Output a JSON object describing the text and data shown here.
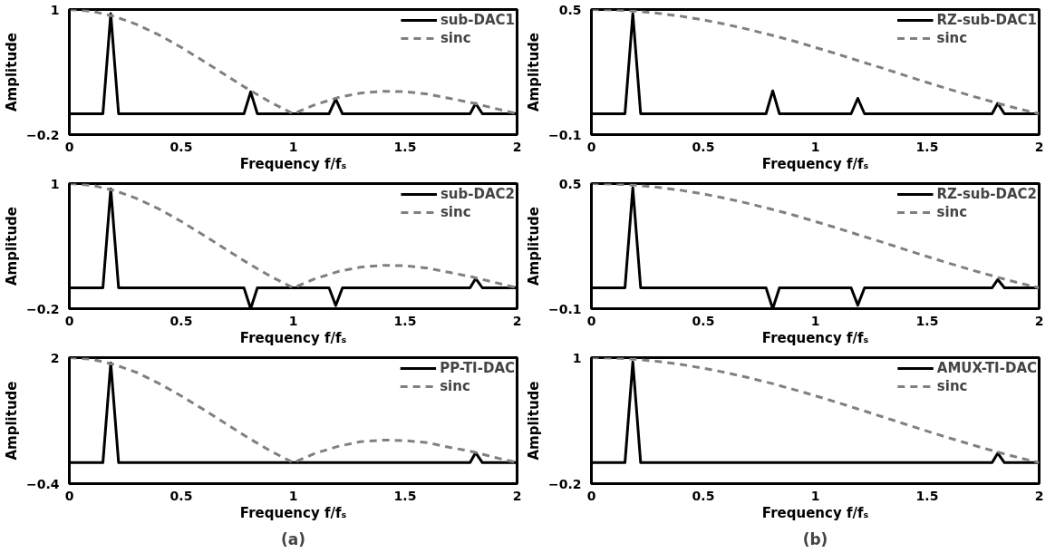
{
  "chart_data": [
    {
      "type": "line",
      "xlabel": "Frequency f/fₛ",
      "ylabel": "Amplitude",
      "xlim": [
        0,
        2
      ],
      "xticks": [
        0,
        0.5,
        1,
        1.5,
        2
      ],
      "ylim": [
        -0.2,
        1
      ],
      "yticks": [
        -0.2,
        1
      ],
      "grid": false,
      "legend": "top right",
      "series": [
        {
          "name": "sub-DAC1",
          "color": "#000000",
          "line_style": "solid",
          "x": [
            0,
            0.15,
            0.185,
            0.22,
            0.78,
            0.81,
            0.84,
            1.16,
            1.19,
            1.22,
            1.79,
            1.815,
            1.845,
            2
          ],
          "values": [
            0,
            0,
            0.96,
            0,
            0,
            0.21,
            0,
            0,
            0.14,
            0,
            0,
            0.1,
            0,
            0
          ]
        },
        {
          "name": "sinc",
          "color": "#808080",
          "line_style": "dashed",
          "x": [
            0,
            0.1,
            0.2,
            0.3,
            0.4,
            0.5,
            0.6,
            0.7,
            0.8,
            0.9,
            1,
            1.1,
            1.2,
            1.3,
            1.4,
            1.5,
            1.6,
            1.7,
            1.8,
            1.9,
            2
          ],
          "values": [
            1,
            0.984,
            0.935,
            0.858,
            0.757,
            0.637,
            0.505,
            0.368,
            0.234,
            0.109,
            0,
            0.089,
            0.156,
            0.198,
            0.216,
            0.212,
            0.189,
            0.147,
            0.104,
            0.052,
            0
          ]
        }
      ]
    },
    {
      "type": "line",
      "xlabel": "Frequency f/fₛ",
      "ylabel": "Amplitude",
      "xlim": [
        0,
        2
      ],
      "xticks": [
        0,
        0.5,
        1,
        1.5,
        2
      ],
      "ylim": [
        -0.1,
        0.5
      ],
      "yticks": [
        -0.1,
        0.5
      ],
      "grid": false,
      "legend": "top right",
      "series": [
        {
          "name": "RZ-sub-DAC1",
          "color": "#000000",
          "line_style": "solid",
          "x": [
            0,
            0.15,
            0.185,
            0.22,
            0.78,
            0.81,
            0.84,
            1.16,
            1.19,
            1.22,
            1.79,
            1.815,
            1.845,
            2
          ],
          "values": [
            0,
            0,
            0.48,
            0,
            0,
            0.11,
            0,
            0,
            0.074,
            0,
            0,
            0.05,
            0,
            0
          ]
        },
        {
          "name": "sinc",
          "color": "#808080",
          "line_style": "dashed",
          "x": [
            0,
            0.1,
            0.2,
            0.3,
            0.4,
            0.5,
            0.6,
            0.7,
            0.8,
            0.9,
            1,
            1.1,
            1.2,
            1.3,
            1.4,
            1.5,
            1.6,
            1.7,
            1.8,
            1.9,
            2
          ],
          "values": [
            0.5,
            0.498,
            0.492,
            0.482,
            0.468,
            0.45,
            0.429,
            0.405,
            0.378,
            0.35,
            0.318,
            0.286,
            0.252,
            0.219,
            0.184,
            0.15,
            0.117,
            0.085,
            0.055,
            0.026,
            0
          ]
        }
      ]
    },
    {
      "type": "line",
      "xlabel": "Frequency f/fₛ",
      "ylabel": "Amplitude",
      "xlim": [
        0,
        2
      ],
      "xticks": [
        0,
        0.5,
        1,
        1.5,
        2
      ],
      "ylim": [
        -0.2,
        1
      ],
      "yticks": [
        -0.2,
        1
      ],
      "grid": false,
      "legend": "top right",
      "series": [
        {
          "name": "sub-DAC2",
          "color": "#000000",
          "line_style": "solid",
          "x": [
            0,
            0.15,
            0.185,
            0.22,
            0.78,
            0.81,
            0.84,
            1.16,
            1.19,
            1.22,
            1.79,
            1.815,
            1.845,
            2
          ],
          "values": [
            0,
            0,
            0.95,
            0,
            0,
            -0.2,
            0,
            0,
            -0.17,
            0,
            0,
            0.09,
            0,
            0
          ]
        },
        {
          "name": "sinc",
          "color": "#808080",
          "line_style": "dashed",
          "x": [
            0,
            0.1,
            0.2,
            0.3,
            0.4,
            0.5,
            0.6,
            0.7,
            0.8,
            0.9,
            1,
            1.1,
            1.2,
            1.3,
            1.4,
            1.5,
            1.6,
            1.7,
            1.8,
            1.9,
            2
          ],
          "values": [
            1,
            0.984,
            0.935,
            0.858,
            0.757,
            0.637,
            0.505,
            0.368,
            0.234,
            0.109,
            0,
            0.089,
            0.156,
            0.198,
            0.216,
            0.212,
            0.189,
            0.147,
            0.104,
            0.052,
            0
          ]
        }
      ]
    },
    {
      "type": "line",
      "xlabel": "Frequency f/fₛ",
      "ylabel": "Amplitude",
      "xlim": [
        0,
        2
      ],
      "xticks": [
        0,
        0.5,
        1,
        1.5,
        2
      ],
      "ylim": [
        -0.1,
        0.5
      ],
      "yticks": [
        -0.1,
        0.5
      ],
      "grid": false,
      "legend": "top right",
      "series": [
        {
          "name": "RZ-sub-DAC2",
          "color": "#000000",
          "line_style": "solid",
          "x": [
            0,
            0.15,
            0.185,
            0.22,
            0.78,
            0.81,
            0.84,
            1.16,
            1.19,
            1.22,
            1.79,
            1.815,
            1.845,
            2
          ],
          "values": [
            0,
            0,
            0.48,
            0,
            0,
            -0.1,
            0,
            0,
            -0.083,
            0,
            0,
            0.04,
            0,
            0
          ]
        },
        {
          "name": "sinc",
          "color": "#808080",
          "line_style": "dashed",
          "x": [
            0,
            0.1,
            0.2,
            0.3,
            0.4,
            0.5,
            0.6,
            0.7,
            0.8,
            0.9,
            1,
            1.1,
            1.2,
            1.3,
            1.4,
            1.5,
            1.6,
            1.7,
            1.8,
            1.9,
            2
          ],
          "values": [
            0.5,
            0.498,
            0.492,
            0.482,
            0.468,
            0.45,
            0.429,
            0.405,
            0.378,
            0.35,
            0.318,
            0.286,
            0.252,
            0.219,
            0.184,
            0.15,
            0.117,
            0.085,
            0.055,
            0.026,
            0
          ]
        }
      ]
    },
    {
      "type": "line",
      "xlabel": "Frequency f/fₛ",
      "ylabel": "Amplitude",
      "xlim": [
        0,
        2
      ],
      "xticks": [
        0,
        0.5,
        1,
        1.5,
        2
      ],
      "ylim": [
        -0.4,
        2
      ],
      "yticks": [
        -0.4,
        2
      ],
      "grid": false,
      "legend": "top right",
      "annotations": [
        "(a)"
      ],
      "series": [
        {
          "name": "PP-TI-DAC",
          "color": "#000000",
          "line_style": "solid",
          "x": [
            0,
            0.15,
            0.185,
            0.22,
            1.79,
            1.815,
            1.845,
            2
          ],
          "values": [
            0,
            0,
            1.9,
            0,
            0,
            0.19,
            0,
            0
          ]
        },
        {
          "name": "sinc",
          "color": "#808080",
          "line_style": "dashed",
          "x": [
            0,
            0.1,
            0.2,
            0.3,
            0.4,
            0.5,
            0.6,
            0.7,
            0.8,
            0.9,
            1,
            1.1,
            1.2,
            1.3,
            1.4,
            1.5,
            1.6,
            1.7,
            1.8,
            1.9,
            2
          ],
          "values": [
            2,
            1.97,
            1.87,
            1.72,
            1.51,
            1.27,
            1.01,
            0.74,
            0.47,
            0.22,
            0,
            0.18,
            0.31,
            0.4,
            0.43,
            0.42,
            0.38,
            0.29,
            0.21,
            0.1,
            0
          ]
        }
      ]
    },
    {
      "type": "line",
      "xlabel": "Frequency f/fₛ",
      "ylabel": "Amplitude",
      "xlim": [
        0,
        2
      ],
      "xticks": [
        0,
        0.5,
        1,
        1.5,
        2
      ],
      "ylim": [
        -0.2,
        1
      ],
      "yticks": [
        -0.2,
        1
      ],
      "grid": false,
      "legend": "top right",
      "annotations": [
        "(b)"
      ],
      "series": [
        {
          "name": "AMUX-TI-DAC",
          "color": "#000000",
          "line_style": "solid",
          "x": [
            0,
            0.15,
            0.185,
            0.22,
            1.79,
            1.815,
            1.845,
            2
          ],
          "values": [
            0,
            0,
            0.96,
            0,
            0,
            0.09,
            0,
            0
          ]
        },
        {
          "name": "sinc",
          "color": "#808080",
          "line_style": "dashed",
          "x": [
            0,
            0.1,
            0.2,
            0.3,
            0.4,
            0.5,
            0.6,
            0.7,
            0.8,
            0.9,
            1,
            1.1,
            1.2,
            1.3,
            1.4,
            1.5,
            1.6,
            1.7,
            1.8,
            1.9,
            2
          ],
          "values": [
            1,
            0.996,
            0.984,
            0.963,
            0.935,
            0.9,
            0.858,
            0.81,
            0.757,
            0.699,
            0.637,
            0.572,
            0.505,
            0.437,
            0.368,
            0.3,
            0.234,
            0.17,
            0.109,
            0.052,
            0
          ]
        }
      ]
    }
  ]
}
